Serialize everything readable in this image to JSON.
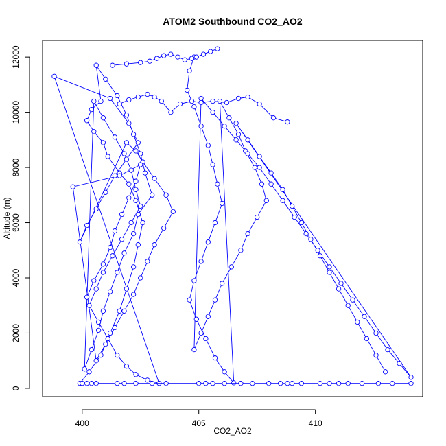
{
  "chart_data": {
    "type": "scatter",
    "title": "ATOM2 Southbound CO2_AO2",
    "xlabel": "CO2_AO2",
    "ylabel": "Altitude (m)",
    "xlim": [
      398.3,
      414.6
    ],
    "ylim": [
      -300,
      12600
    ],
    "xticks": [
      400,
      405,
      410
    ],
    "yticks": [
      0,
      2000,
      4000,
      6000,
      8000,
      10000,
      12000
    ],
    "grid": false,
    "legend": "none",
    "colors": {
      "series": "#0000ff",
      "axis": "#000000",
      "background": "#ffffff"
    },
    "series": [
      {
        "style": "lines+points",
        "x": [
          399.9,
          400.3,
          400.8,
          401.2,
          401.6,
          401.9,
          402.2,
          402.4,
          402.6,
          402.3,
          402.0,
          401.6,
          401.1,
          400.9,
          400.5,
          400.2,
          400.4,
          400.8,
          400.6,
          401.0,
          401.5,
          401.9,
          402.2,
          402.5,
          402.7,
          403.0,
          402.4,
          402.2,
          401.8,
          401.5,
          401.2,
          400.9,
          400.7,
          400.4,
          400.1,
          400.5,
          400.9,
          401.4,
          401.8,
          402.1,
          402.3,
          402.5,
          402.1,
          401.7,
          401.3,
          400.9,
          400.6,
          400.3,
          400.7,
          401.1,
          401.5,
          401.9,
          402.3,
          402.8,
          403.3,
          398.8,
          401.2,
          402.0,
          402.4,
          401.9,
          401.4,
          401.0,
          400.6,
          400.2,
          399.9,
          401.9,
          402.3,
          402.6,
          403.1,
          403.6,
          403.9,
          403.5,
          403.1,
          402.8,
          402.5,
          402.2,
          401.8,
          401.4,
          401.0,
          400.6,
          399.6,
          401.6,
          402.5,
          402.3,
          402.0,
          401.7,
          401.4,
          401.2,
          400.9,
          400.5,
          400.2
        ],
        "y": [
          180,
          600,
          1200,
          2000,
          2800,
          3600,
          4400,
          5200,
          6000,
          6800,
          7400,
          7800,
          8400,
          8900,
          9300,
          9700,
          10100,
          10400,
          11700,
          11200,
          10600,
          9900,
          9200,
          8500,
          7800,
          7000,
          6300,
          5600,
          4900,
          4200,
          3500,
          2800,
          2100,
          1400,
          700,
          10400,
          9800,
          9100,
          8500,
          7900,
          7200,
          6600,
          6000,
          5400,
          4800,
          4200,
          3600,
          3000,
          2400,
          1800,
          1200,
          800,
          500,
          300,
          180,
          11300,
          10500,
          9600,
          8900,
          8300,
          7700,
          7100,
          6500,
          5900,
          5300,
          8900,
          8600,
          8200,
          7600,
          7000,
          6400,
          5800,
          5200,
          4600,
          4000,
          3400,
          2800,
          2200,
          1600,
          1000,
          7300,
          7700,
          8100,
          7500,
          6900,
          6300,
          5700,
          5100,
          4500,
          3900,
          3300
        ]
      },
      {
        "style": "lines+points",
        "x": [
          404.8,
          404.6,
          404.5,
          404.8,
          405.1,
          405.4,
          405.6,
          405.8,
          406.0,
          405.7,
          405.4,
          405.1,
          404.8,
          404.6,
          404.9,
          405.3,
          405.7,
          406.1,
          406.5,
          405.9,
          406.3,
          406.7,
          407.0,
          407.4,
          407.7,
          407.9,
          407.5,
          407.1,
          406.8,
          406.4,
          406.0,
          405.7,
          405.4,
          405.1,
          404.8,
          405.1,
          405.6,
          406.1,
          406.6,
          407.1,
          407.6,
          408.1,
          408.6,
          409.1,
          409.6,
          410.1,
          410.6,
          411.1,
          411.6,
          412.1,
          412.6,
          413.1,
          413.6,
          414.1,
          406.6,
          407.1,
          407.6,
          408.1,
          408.6,
          409.0,
          409.4,
          409.8,
          410.2,
          410.6,
          411.0,
          411.4,
          411.8,
          412.2,
          412.6,
          413.0
        ],
        "y": [
          12000,
          11500,
          10800,
          10200,
          9500,
          8800,
          8100,
          7400,
          6700,
          6000,
          5300,
          4600,
          3900,
          3200,
          2500,
          1800,
          1100,
          600,
          200,
          10400,
          9800,
          9200,
          8600,
          8000,
          7400,
          6800,
          6200,
          5600,
          5000,
          4400,
          3800,
          3200,
          2600,
          2000,
          1400,
          10500,
          10000,
          9500,
          9000,
          8500,
          8000,
          7400,
          6800,
          6200,
          5600,
          5000,
          4400,
          3800,
          3200,
          2600,
          2000,
          1400,
          900,
          400,
          9600,
          9000,
          8400,
          7800,
          7200,
          6600,
          6000,
          5400,
          4800,
          4200,
          3600,
          3000,
          2400,
          1800,
          1200,
          600
        ]
      },
      {
        "style": "lines+points",
        "x": [
          400.0,
          400.2,
          400.4,
          400.6,
          401.5,
          401.8,
          402.3,
          403.0,
          403.6,
          405.0,
          405.3,
          405.6,
          406.1,
          406.8,
          407.3,
          408.0,
          408.5,
          408.8,
          409.0,
          409.4,
          410.2,
          410.6,
          411.0,
          411.4,
          412.0,
          412.7,
          413.3,
          414.1
        ],
        "y": [
          180,
          180,
          180,
          180,
          180,
          180,
          180,
          180,
          180,
          180,
          180,
          180,
          180,
          180,
          180,
          180,
          180,
          180,
          180,
          180,
          180,
          180,
          180,
          180,
          180,
          180,
          180,
          180
        ]
      },
      {
        "style": "lines+points",
        "x": [
          401.3,
          401.9,
          402.5,
          402.9,
          403.2,
          403.5,
          403.8,
          404.1,
          404.4,
          404.7,
          404.9,
          405.2,
          405.5,
          405.8
        ],
        "y": [
          11700,
          11750,
          11800,
          11850,
          11950,
          12050,
          12100,
          12000,
          11900,
          11950,
          12000,
          12100,
          12200,
          12300
        ]
      },
      {
        "style": "lines+points",
        "x": [
          401.6,
          402.0,
          402.4,
          402.8,
          403.1,
          403.4,
          403.8,
          404.2,
          404.7,
          405.1,
          405.6,
          406.2,
          406.7,
          407.1,
          407.6,
          408.2,
          408.8
        ],
        "y": [
          10300,
          10450,
          10550,
          10650,
          10550,
          10400,
          10000,
          10300,
          10400,
          10350,
          10400,
          10350,
          10500,
          10550,
          10300,
          9800,
          9650
        ]
      }
    ]
  }
}
